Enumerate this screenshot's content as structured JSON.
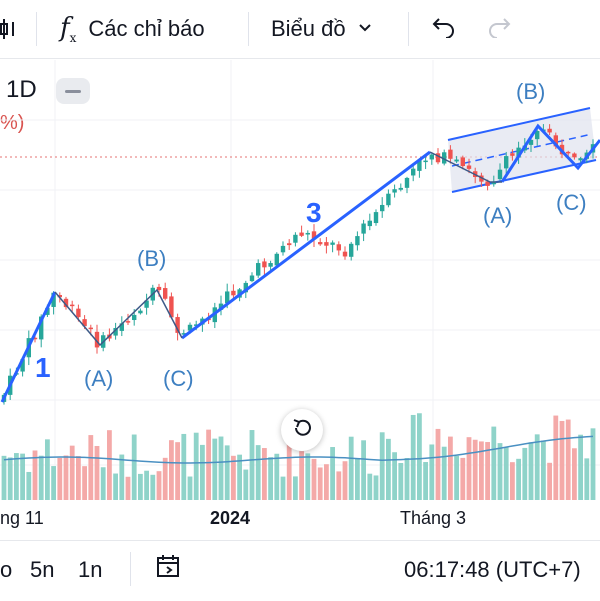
{
  "toolbar": {
    "indicators_icon": "function-icon",
    "indicators_label": "Các chỉ báo",
    "chart_type_label": "Biểu đồ",
    "chart_type_icon": "chevron-down-icon",
    "undo_icon": "undo-icon",
    "redo_icon": "redo-icon"
  },
  "chart_header": {
    "timeframe": "1D",
    "change_fragment": "%)"
  },
  "wave_labels": {
    "w1": "1",
    "w3": "3",
    "a1": "(A)",
    "b1": "(B)",
    "c1": "(C)",
    "a2": "(A)",
    "b2": "(B)",
    "c2": "(C)"
  },
  "time_axis": {
    "left": "ng 11",
    "mid": "2024",
    "right": "Tháng 3"
  },
  "bottom_bar": {
    "range_a": "o",
    "range_b": "5n",
    "range_c": "1n",
    "goto_icon": "calendar-range-icon",
    "clock": "06:17:48 (UTC+7)"
  },
  "colors": {
    "up": "#26a69a",
    "down": "#ef5350",
    "wave_line": "#2962ff",
    "label_blue": "#3d7fc1",
    "channel_fill": "#dfe3ee"
  }
}
